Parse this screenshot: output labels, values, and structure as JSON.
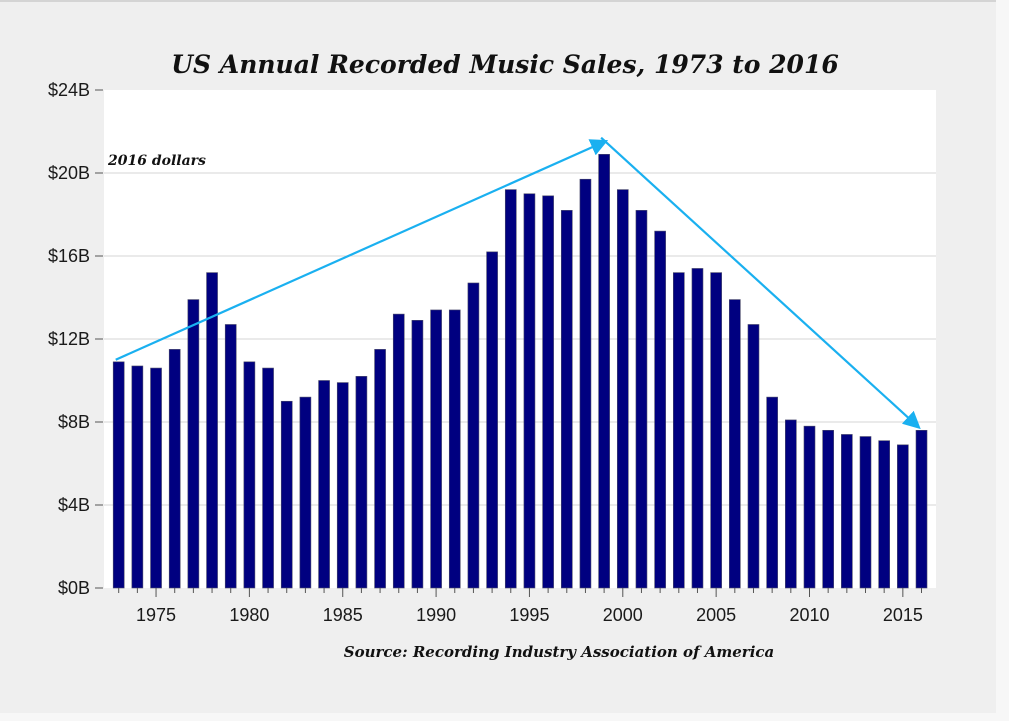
{
  "chart_data": {
    "type": "bar",
    "title": "US Annual Recorded Music Sales, 1973 to 2016",
    "annotation": "2016 dollars",
    "source": "Source: Recording Industry Association of America",
    "xlabel": "",
    "ylabel": "",
    "ylim": [
      0,
      24
    ],
    "yticks": [
      0,
      4,
      8,
      12,
      16,
      20,
      24
    ],
    "ytick_labels": [
      "$0B",
      "$4B",
      "$8B",
      "$12B",
      "$16B",
      "$20B",
      "$24B"
    ],
    "xticks": [
      1975,
      1980,
      1985,
      1990,
      1995,
      2000,
      2005,
      2010,
      2015
    ],
    "xtick_labels": [
      "1975",
      "1980",
      "1985",
      "1990",
      "1995",
      "2000",
      "2005",
      "2010",
      "2015"
    ],
    "grid": "horizontal",
    "bar_color": "#000080",
    "arrow_color": "#1ab0f0",
    "categories": [
      1973,
      1974,
      1975,
      1976,
      1977,
      1978,
      1979,
      1980,
      1981,
      1982,
      1983,
      1984,
      1985,
      1986,
      1987,
      1988,
      1989,
      1990,
      1991,
      1992,
      1993,
      1994,
      1995,
      1996,
      1997,
      1998,
      1999,
      2000,
      2001,
      2002,
      2003,
      2004,
      2005,
      2006,
      2007,
      2008,
      2009,
      2010,
      2011,
      2012,
      2013,
      2014,
      2015,
      2016
    ],
    "values": [
      10.9,
      10.7,
      10.6,
      11.5,
      13.9,
      15.2,
      12.7,
      10.9,
      10.6,
      9.0,
      9.2,
      10.0,
      9.9,
      10.2,
      11.5,
      13.2,
      12.9,
      13.4,
      13.4,
      14.7,
      16.2,
      19.2,
      19.0,
      18.9,
      18.2,
      19.7,
      20.9,
      19.2,
      18.2,
      17.2,
      15.2,
      15.4,
      15.2,
      13.9,
      12.7,
      9.2,
      8.1,
      7.8,
      7.6,
      7.4,
      7.3,
      7.1,
      6.9,
      7.6
    ],
    "trend_arrows": [
      {
        "from": [
          1973,
          11.0
        ],
        "to": [
          1999,
          21.5
        ]
      },
      {
        "from": [
          1999,
          21.7
        ],
        "to": [
          2016,
          7.8
        ]
      }
    ]
  }
}
